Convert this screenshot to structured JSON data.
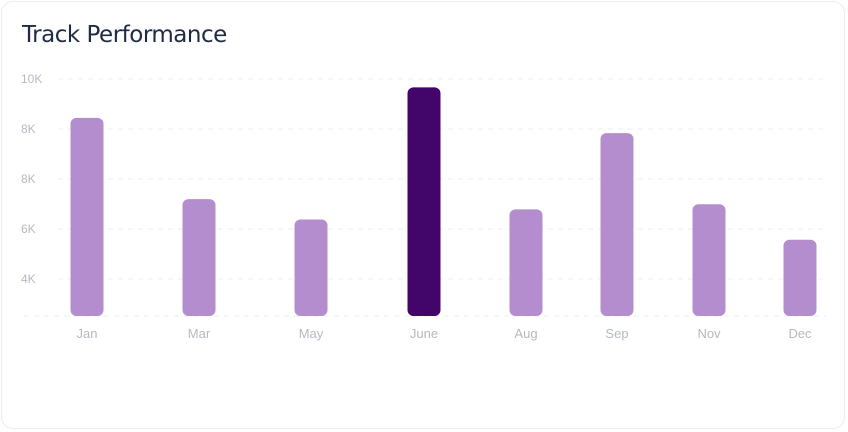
{
  "chart_data": {
    "type": "bar",
    "title": "Track Performance",
    "y_tick_labels": [
      "10K",
      "8K",
      "8K",
      "6K",
      "4K"
    ],
    "categories": [
      "Jan",
      "Mar",
      "May",
      "June",
      "Aug",
      "Sep",
      "Nov",
      "Dec"
    ],
    "values": [
      7.2,
      5.6,
      5.2,
      7.8,
      5.4,
      6.9,
      5.5,
      4.8
    ],
    "highlight_index": 3,
    "colors": {
      "bar": "#b48dce",
      "highlight": "#42056a",
      "grid": "#ececf1",
      "tick": "#b7b9c2",
      "title": "#1f2a44"
    },
    "grid": true,
    "ylim": [
      3.3,
      9.6
    ]
  }
}
